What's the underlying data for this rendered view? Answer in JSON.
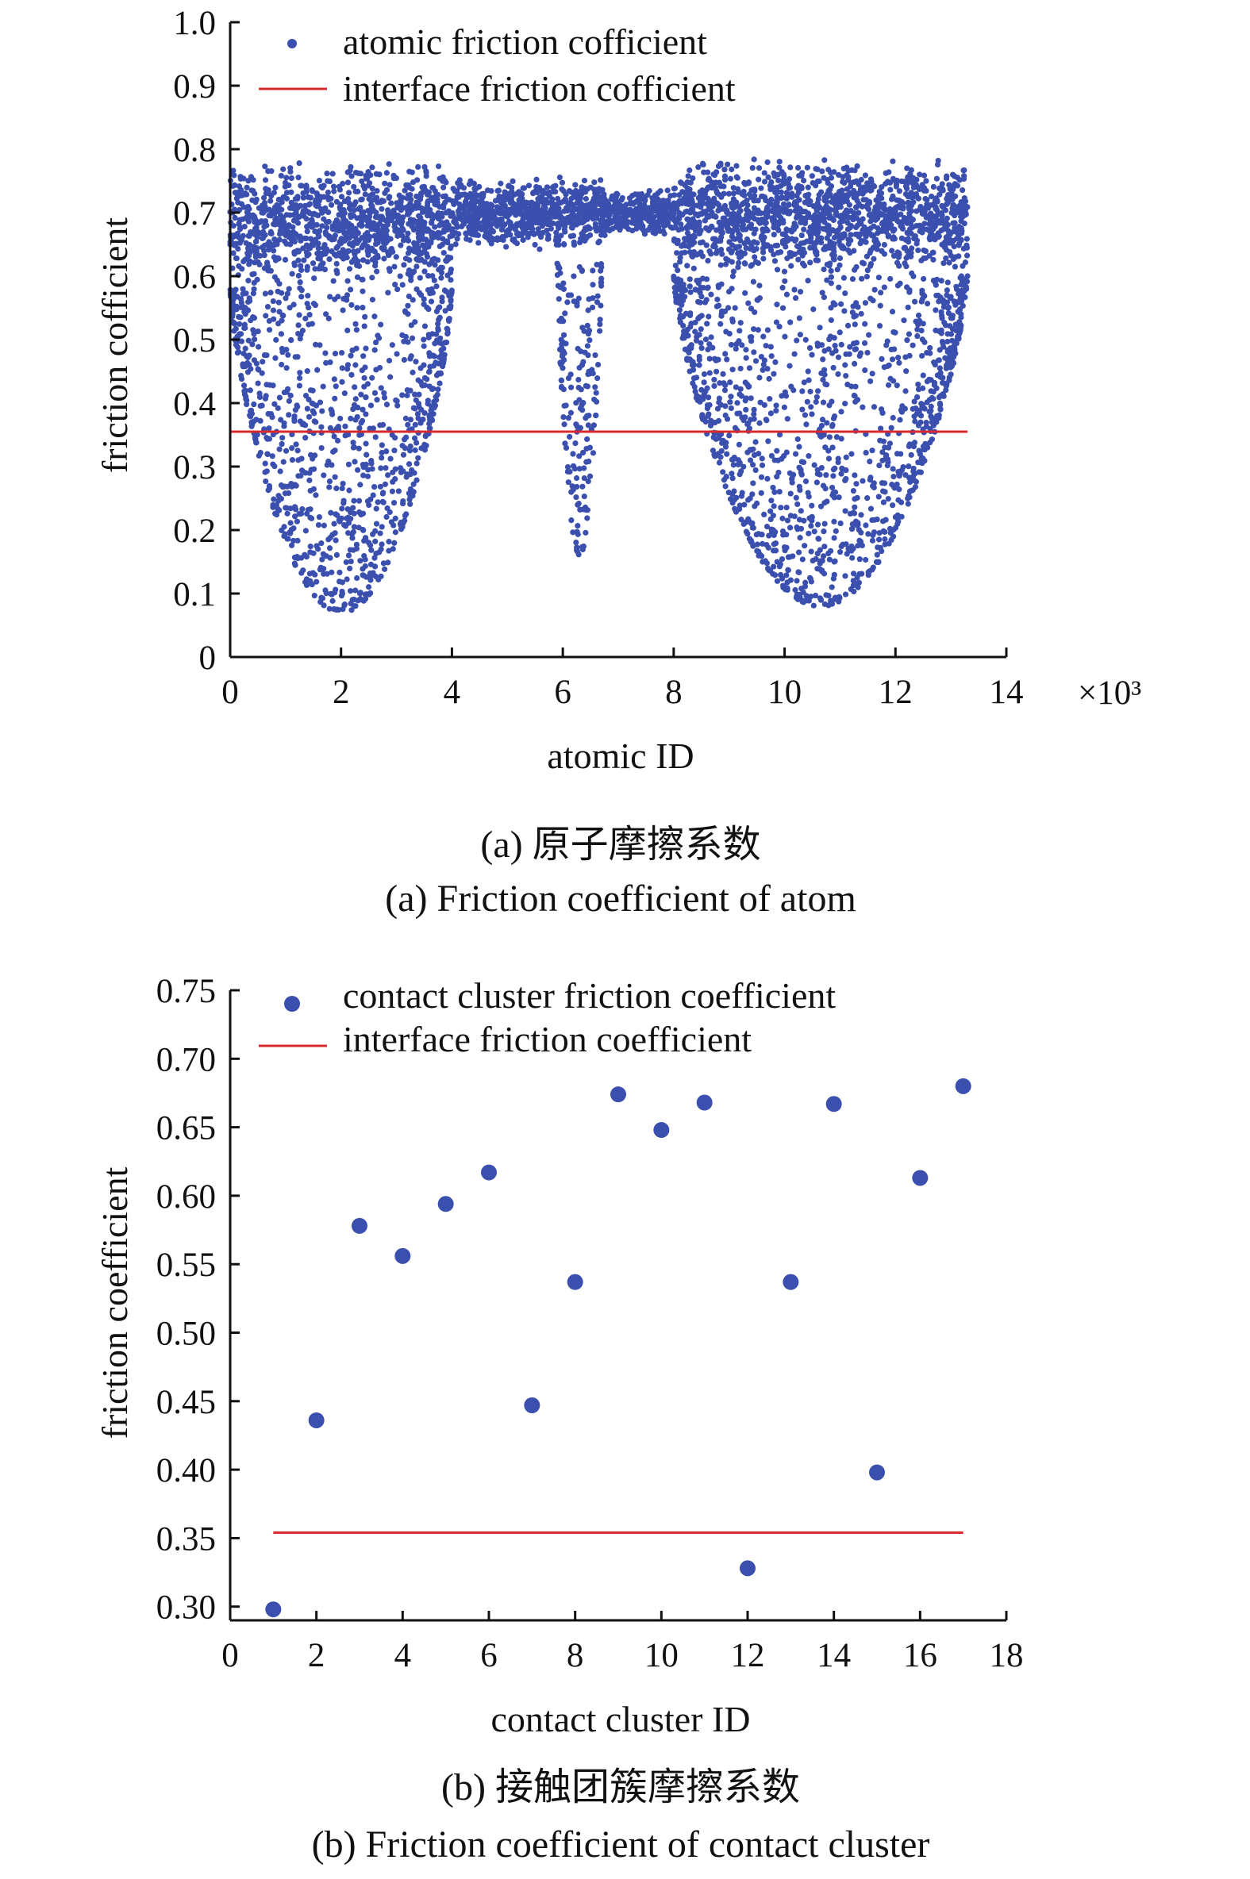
{
  "colors": {
    "points": "#3a4fae",
    "line": "#d8292c",
    "axis": "#111111"
  },
  "charts": [
    {
      "caption_cn": "(a) 原子摩擦系数",
      "caption_en": "(a) Friction coefficient of atom",
      "xlabel": "atomic ID",
      "ylabel": "friction cofficient",
      "x_multiplier": "×10³",
      "x_ticks": [
        "0",
        "2",
        "4",
        "6",
        "8",
        "10",
        "12",
        "14"
      ],
      "y_ticks": [
        "0",
        "0.1",
        "0.2",
        "0.3",
        "0.4",
        "0.5",
        "0.6",
        "0.7",
        "0.8",
        "0.9",
        "1.0"
      ],
      "legend": [
        "atomic friction cofficient",
        "interface friction cofficient"
      ]
    },
    {
      "caption_cn": "(b) 接触团簇摩擦系数",
      "caption_en": "(b) Friction coefficient of contact cluster",
      "xlabel": "contact cluster ID",
      "ylabel": "friction coefficient",
      "x_ticks": [
        "0",
        "2",
        "4",
        "6",
        "8",
        "10",
        "12",
        "14",
        "16",
        "18"
      ],
      "y_ticks": [
        "0.30",
        "0.35",
        "0.40",
        "0.45",
        "0.50",
        "0.55",
        "0.60",
        "0.65",
        "0.70",
        "0.75"
      ],
      "legend": [
        "contact cluster friction coefficient",
        "interface friction coefficient"
      ]
    }
  ],
  "chart_data": [
    {
      "type": "scatter",
      "title": "",
      "xlabel": "atomic ID",
      "ylabel": "friction cofficient",
      "xlim": [
        0,
        14
      ],
      "x_unit_multiplier": "×10³",
      "ylim": [
        0,
        1.0
      ],
      "grid": false,
      "legend_position": "top-left",
      "series": [
        {
          "name": "atomic friction cofficient",
          "kind": "dense scatter",
          "bands": [
            {
              "x_range": [
                0.0,
                4.0
              ],
              "upper_band": [
                0.58,
                0.78
              ],
              "lower_spread": [
                0.07,
                0.58
              ]
            },
            {
              "x_range": [
                4.0,
                5.9
              ],
              "upper_band": [
                0.64,
                0.76
              ],
              "lower_spread": null
            },
            {
              "x_range": [
                5.9,
                6.7
              ],
              "upper_band": [
                0.64,
                0.76
              ],
              "lower_spread": [
                0.16,
                0.62
              ]
            },
            {
              "x_range": [
                6.7,
                8.0
              ],
              "upper_band": [
                0.66,
                0.74
              ],
              "lower_spread": null
            },
            {
              "x_range": [
                8.0,
                13.3
              ],
              "upper_band": [
                0.6,
                0.79
              ],
              "lower_spread": [
                0.08,
                0.6
              ]
            }
          ]
        },
        {
          "name": "interface friction cofficient",
          "kind": "hline",
          "y": 0.355,
          "x_range": [
            0.0,
            13.3
          ]
        }
      ]
    },
    {
      "type": "scatter",
      "title": "",
      "xlabel": "contact cluster ID",
      "ylabel": "friction coefficient",
      "xlim": [
        0,
        18
      ],
      "ylim": [
        0.29,
        0.75
      ],
      "grid": false,
      "legend_position": "top-left",
      "series": [
        {
          "name": "contact cluster friction coefficient",
          "x": [
            1,
            2,
            3,
            4,
            5,
            6,
            7,
            8,
            9,
            10,
            11,
            12,
            13,
            14,
            15,
            16,
            17
          ],
          "y": [
            0.298,
            0.436,
            0.578,
            0.556,
            0.594,
            0.617,
            0.447,
            0.537,
            0.674,
            0.648,
            0.668,
            0.328,
            0.537,
            0.667,
            0.398,
            0.613,
            0.68
          ]
        },
        {
          "name": "interface friction coefficient",
          "kind": "hline",
          "y": 0.354,
          "x_range": [
            1,
            17
          ]
        }
      ]
    }
  ]
}
